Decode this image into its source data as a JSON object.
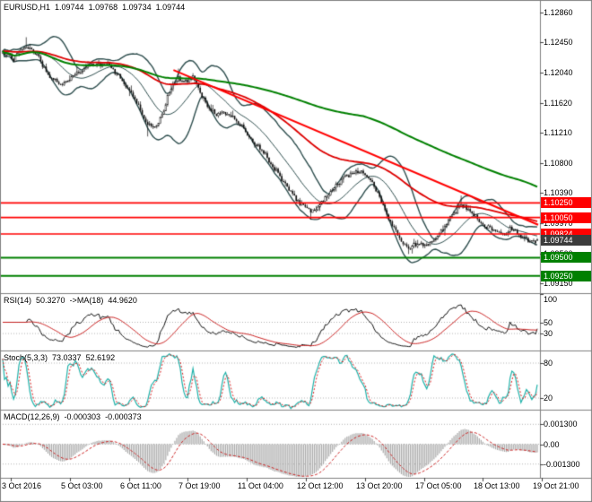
{
  "header": {
    "symbol": "EURUSD,H1",
    "open": "1.09744",
    "high": "1.09768",
    "low": "1.09734",
    "close": "1.09744"
  },
  "time_axis": {
    "labels": [
      "3 Oct 2016",
      "5 Oct 03:00",
      "6 Oct 11:00",
      "7 Oct 19:00",
      "11 Oct 04:00",
      "12 Oct 12:00",
      "13 Oct 20:00",
      "17 Oct 05:00",
      "18 Oct 13:00",
      "19 Oct 21:00"
    ]
  },
  "colors": {
    "up_candle": "#ffffff",
    "down_candle": "#111111",
    "candle_border": "#111111",
    "bollinger": "#2f4f4f",
    "ma_red": "#dd0000",
    "ma_green": "#008000",
    "level_red": "#ff0000",
    "level_green": "#008000",
    "current_badge": "#3c3c3c",
    "rsi_line": "#151515",
    "rsi_ma": "#cc2222",
    "stoch_main": "#20b2aa",
    "stoch_signal": "#dd2222",
    "macd_hist": "#aaaaaa",
    "macd_signal": "#cc2222",
    "separator": "#808080",
    "axis_text": "#000000"
  },
  "chart_data": {
    "type": "candlestick",
    "symbol": "EURUSD",
    "timeframe": "H1",
    "price_pane": {
      "price_max": 1.1303,
      "price_min": 1.09014,
      "bars": 296,
      "axis_ticks": [
        "1.12860",
        "1.12450",
        "1.12040",
        "1.11620",
        "1.11210",
        "1.10800",
        "1.10390",
        "1.09970",
        "1.09560",
        "1.09150"
      ],
      "close_path": [
        [
          0.0,
          1.123
        ],
        [
          0.02,
          1.1222
        ],
        [
          0.042,
          1.124
        ],
        [
          0.063,
          1.1228
        ],
        [
          0.087,
          1.12
        ],
        [
          0.108,
          1.1186
        ],
        [
          0.13,
          1.1198
        ],
        [
          0.153,
          1.1208
        ],
        [
          0.175,
          1.1216
        ],
        [
          0.197,
          1.1214
        ],
        [
          0.217,
          1.12
        ],
        [
          0.237,
          1.118
        ],
        [
          0.253,
          1.116
        ],
        [
          0.27,
          1.1132
        ],
        [
          0.287,
          1.1128
        ],
        [
          0.3,
          1.115
        ],
        [
          0.313,
          1.118
        ],
        [
          0.327,
          1.1196
        ],
        [
          0.342,
          1.119
        ],
        [
          0.355,
          1.1198
        ],
        [
          0.37,
          1.1175
        ],
        [
          0.387,
          1.1155
        ],
        [
          0.403,
          1.1145
        ],
        [
          0.42,
          1.1148
        ],
        [
          0.437,
          1.1138
        ],
        [
          0.453,
          1.1125
        ],
        [
          0.47,
          1.1108
        ],
        [
          0.487,
          1.1095
        ],
        [
          0.503,
          1.1078
        ],
        [
          0.52,
          1.106
        ],
        [
          0.537,
          1.1042
        ],
        [
          0.55,
          1.1028
        ],
        [
          0.563,
          1.102
        ],
        [
          0.577,
          1.1012
        ],
        [
          0.59,
          1.102
        ],
        [
          0.603,
          1.1032
        ],
        [
          0.62,
          1.1046
        ],
        [
          0.637,
          1.1058
        ],
        [
          0.653,
          1.1064
        ],
        [
          0.667,
          1.1068
        ],
        [
          0.68,
          1.1062
        ],
        [
          0.693,
          1.105
        ],
        [
          0.707,
          1.103
        ],
        [
          0.72,
          1.1008
        ],
        [
          0.733,
          1.0988
        ],
        [
          0.747,
          1.0972
        ],
        [
          0.76,
          1.0963
        ],
        [
          0.777,
          1.097
        ],
        [
          0.793,
          1.0968
        ],
        [
          0.81,
          1.0978
        ],
        [
          0.827,
          1.0992
        ],
        [
          0.843,
          1.101
        ],
        [
          0.857,
          1.1022
        ],
        [
          0.87,
          1.1018
        ],
        [
          0.883,
          1.1008
        ],
        [
          0.897,
          1.0998
        ],
        [
          0.91,
          1.099
        ],
        [
          0.923,
          1.0984
        ],
        [
          0.937,
          1.098
        ],
        [
          0.95,
          1.099
        ],
        [
          0.963,
          1.0985
        ],
        [
          0.977,
          1.0975
        ],
        [
          0.99,
          1.097
        ],
        [
          1.0,
          1.09744
        ]
      ],
      "wick_events": [
        {
          "f": 0.045,
          "side": "high",
          "price": 1.1252
        },
        {
          "f": 0.27,
          "side": "low",
          "price": 1.1116
        },
        {
          "f": 0.33,
          "side": "high",
          "price": 1.1209
        },
        {
          "f": 0.577,
          "side": "low",
          "price": 1.1002
        },
        {
          "f": 0.76,
          "side": "low",
          "price": 1.0955
        },
        {
          "f": 0.857,
          "side": "high",
          "price": 1.1035
        }
      ],
      "levels": [
        {
          "price": 1.1025,
          "color": "red",
          "label": "1.10250"
        },
        {
          "price": 1.1005,
          "color": "red",
          "label": "1.10050"
        },
        {
          "price": 1.09824,
          "color": "red",
          "label": "1.09824"
        },
        {
          "price": 1.095,
          "color": "green",
          "label": "1.09500"
        },
        {
          "price": 1.0925,
          "color": "green",
          "label": "1.09250"
        }
      ],
      "current_price": {
        "price": 1.09744,
        "label": "1.09744"
      },
      "trendline": {
        "from_f": 0.32,
        "from_price": 1.1207,
        "to_f": 1.0,
        "to_price": 1.0995
      },
      "overlays": {
        "bollinger_period": 20,
        "bollinger_dev": 2,
        "ma_red_period": 90,
        "ma_green_period": 200
      }
    },
    "rsi_pane": {
      "name": "RSI(14)",
      "value": "50.3270",
      "ma_name": "->MA(18)",
      "ma_value": "44.9620",
      "period": 14,
      "ma_period": 18,
      "range": [
        0,
        100
      ],
      "levels": [
        50,
        30
      ],
      "axis_ticks": [
        "100",
        "50",
        "30"
      ]
    },
    "stoch_pane": {
      "name": "Stoch(5,3,3)",
      "value_k": "73.0337",
      "value_d": "52.6192",
      "k_period": 5,
      "d_period": 3,
      "slowing": 3,
      "range": [
        0,
        100
      ],
      "levels": [
        80,
        20
      ],
      "axis_ticks": [
        "80",
        "20"
      ]
    },
    "macd_pane": {
      "name": "MACD(12,26,9)",
      "value_macd": "-0.000303",
      "value_signal": "-0.000373",
      "fast_period": 12,
      "slow_period": 26,
      "signal_period": 9,
      "range": 0.0022,
      "axis_ticks": [
        {
          "value": 0.0013,
          "label": "0.001300"
        },
        {
          "value": 0,
          "label": "0.00"
        },
        {
          "value": -0.0013,
          "label": "-0.001300"
        }
      ]
    }
  }
}
